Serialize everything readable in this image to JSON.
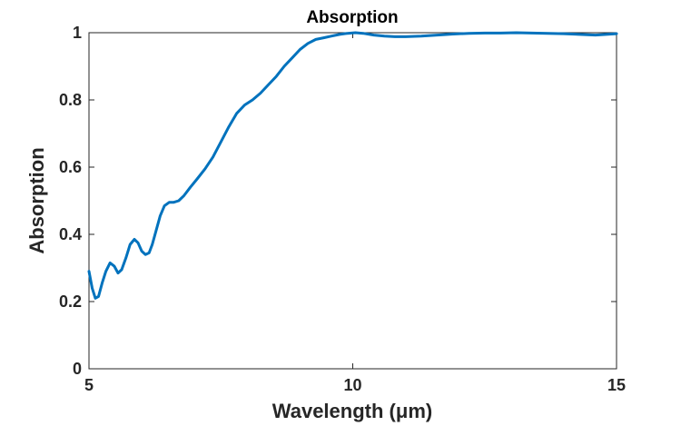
{
  "chart_data": {
    "type": "line",
    "title": "Absorption",
    "xlabel": "Wavelength (μm)",
    "ylabel": "Absorption",
    "xlim": [
      5,
      15
    ],
    "ylim": [
      0,
      1
    ],
    "xticks": [
      5,
      10,
      15
    ],
    "yticks": [
      0,
      0.2,
      0.4,
      0.6,
      0.8,
      1
    ],
    "xtick_labels": [
      "5",
      "10",
      "15"
    ],
    "ytick_labels": [
      "0",
      "0.2",
      "0.4",
      "0.6",
      "0.8",
      "1"
    ],
    "grid": false,
    "series": [
      {
        "color": "#0072BD",
        "x": [
          5.0,
          5.06,
          5.12,
          5.18,
          5.25,
          5.32,
          5.4,
          5.48,
          5.55,
          5.62,
          5.7,
          5.78,
          5.86,
          5.93,
          6.0,
          6.07,
          6.14,
          6.2,
          6.27,
          6.35,
          6.43,
          6.52,
          6.6,
          6.7,
          6.8,
          6.92,
          7.05,
          7.2,
          7.35,
          7.5,
          7.65,
          7.8,
          7.95,
          8.1,
          8.25,
          8.4,
          8.55,
          8.7,
          8.85,
          9.0,
          9.15,
          9.3,
          9.45,
          9.6,
          9.75,
          9.9,
          10.05,
          10.2,
          10.4,
          10.6,
          10.8,
          11.0,
          11.3,
          11.6,
          11.9,
          12.2,
          12.5,
          12.8,
          13.1,
          13.4,
          13.7,
          14.0,
          14.3,
          14.6,
          14.8,
          15.0
        ],
        "y": [
          0.29,
          0.24,
          0.21,
          0.215,
          0.255,
          0.29,
          0.315,
          0.305,
          0.285,
          0.295,
          0.33,
          0.37,
          0.385,
          0.375,
          0.35,
          0.34,
          0.345,
          0.37,
          0.41,
          0.455,
          0.485,
          0.495,
          0.495,
          0.5,
          0.515,
          0.54,
          0.565,
          0.595,
          0.63,
          0.675,
          0.72,
          0.76,
          0.785,
          0.8,
          0.82,
          0.845,
          0.87,
          0.9,
          0.925,
          0.95,
          0.968,
          0.98,
          0.985,
          0.99,
          0.995,
          0.998,
          1.0,
          0.998,
          0.993,
          0.99,
          0.988,
          0.988,
          0.99,
          0.993,
          0.996,
          0.998,
          0.999,
          0.999,
          1.0,
          0.999,
          0.998,
          0.997,
          0.995,
          0.993,
          0.995,
          0.997
        ]
      }
    ]
  }
}
